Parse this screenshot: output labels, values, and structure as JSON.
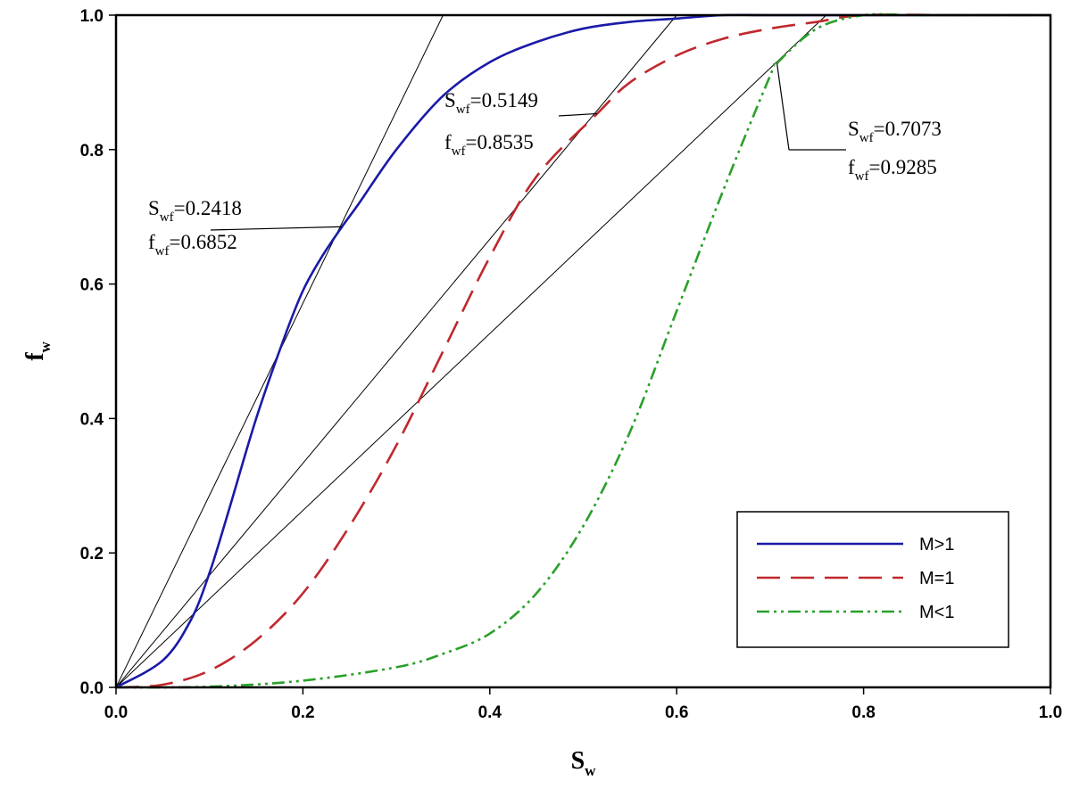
{
  "chart_data": {
    "type": "line",
    "title": "",
    "xlabel": {
      "main": "S",
      "sub": "w"
    },
    "ylabel": {
      "main": "f",
      "sub": "w"
    },
    "xlim": [
      0,
      1
    ],
    "ylim": [
      0,
      1
    ],
    "xticks": [
      "0.0",
      "0.2",
      "0.4",
      "0.6",
      "0.8",
      "1.0"
    ],
    "yticks": [
      "0.0",
      "0.2",
      "0.4",
      "0.6",
      "0.8",
      "1.0"
    ],
    "grid": false,
    "legend_position": "bottom-right",
    "series": [
      {
        "name": "M>1",
        "color": "#1a1aa8",
        "dash": "solid",
        "x": [
          0,
          0.05,
          0.08,
          0.1,
          0.12,
          0.15,
          0.18,
          0.2,
          0.22,
          0.2418,
          0.26,
          0.3,
          0.35,
          0.4,
          0.45,
          0.5,
          0.55,
          0.6,
          0.65,
          0.7,
          0.8,
          1.0
        ],
        "y": [
          0,
          0.04,
          0.1,
          0.17,
          0.26,
          0.4,
          0.52,
          0.59,
          0.64,
          0.6852,
          0.72,
          0.8,
          0.88,
          0.93,
          0.96,
          0.98,
          0.99,
          0.995,
          1.0,
          1.0,
          1.0,
          1.0
        ]
      },
      {
        "name": "M=1",
        "color": "#c0282d",
        "dash": "long-dash",
        "x": [
          0,
          0.05,
          0.1,
          0.15,
          0.2,
          0.25,
          0.3,
          0.35,
          0.4,
          0.45,
          0.5149,
          0.55,
          0.6,
          0.65,
          0.7,
          0.75,
          0.8,
          0.9,
          1.0
        ],
        "y": [
          0,
          0.004,
          0.025,
          0.07,
          0.14,
          0.24,
          0.36,
          0.5,
          0.64,
          0.76,
          0.8535,
          0.9,
          0.94,
          0.965,
          0.98,
          0.99,
          1.0,
          1.0,
          1.0
        ],
        "tangent_point": {
          "x": 0.5149,
          "y": 0.8535
        }
      },
      {
        "name": "M<1",
        "color": "#2aa02a",
        "dash": "dash-dot-dot",
        "x": [
          0,
          0.1,
          0.2,
          0.3,
          0.35,
          0.4,
          0.45,
          0.5,
          0.55,
          0.6,
          0.65,
          0.7,
          0.7073,
          0.75,
          0.8,
          0.85,
          0.9,
          1.0
        ],
        "y": [
          0,
          0.001,
          0.01,
          0.03,
          0.05,
          0.08,
          0.14,
          0.24,
          0.38,
          0.56,
          0.74,
          0.91,
          0.9285,
          0.98,
          1.0,
          1.0,
          1.0,
          1.0
        ]
      }
    ],
    "tangent_lines": [
      {
        "from": [
          0,
          0
        ],
        "to": [
          0.35,
          1.0
        ]
      },
      {
        "from": [
          0,
          0
        ],
        "to": [
          0.6,
          1.0
        ]
      },
      {
        "from": [
          0,
          0
        ],
        "to": [
          0.76,
          1.0
        ]
      }
    ],
    "annotations": [
      {
        "s_main": "S",
        "s_sub": "wf",
        "s_val": "=0.2418",
        "f_main": "f",
        "f_sub": "wf",
        "f_val": "=0.6852",
        "point": [
          0.2418,
          0.6852
        ]
      },
      {
        "s_main": "S",
        "s_sub": "wf",
        "s_val": "=0.5149",
        "f_main": "f",
        "f_sub": "wf",
        "f_val": "=0.8535",
        "point": [
          0.5149,
          0.8535
        ]
      },
      {
        "s_main": "S",
        "s_sub": "wf",
        "s_val": "=0.7073",
        "f_main": "f",
        "f_sub": "wf",
        "f_val": "=0.9285",
        "point": [
          0.7073,
          0.9285
        ]
      }
    ]
  }
}
